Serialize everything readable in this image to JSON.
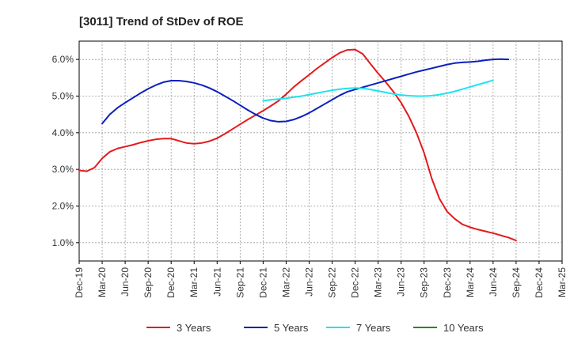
{
  "chart_data": {
    "type": "line",
    "title": "[3011]  Trend of StDev of ROE",
    "xlabel": "",
    "ylabel": "",
    "x_tick_labels": [
      "Dec-19",
      "Mar-20",
      "Jun-20",
      "Sep-20",
      "Dec-20",
      "Mar-21",
      "Jun-21",
      "Sep-21",
      "Dec-21",
      "Mar-22",
      "Jun-22",
      "Sep-22",
      "Dec-22",
      "Mar-23",
      "Jun-23",
      "Sep-23",
      "Dec-23",
      "Mar-24",
      "Jun-24",
      "Sep-24",
      "Dec-24",
      "Mar-25"
    ],
    "y_tick_labels": [
      "1.0%",
      "2.0%",
      "3.0%",
      "4.0%",
      "5.0%",
      "6.0%"
    ],
    "y_ticks": [
      1.0,
      2.0,
      3.0,
      4.0,
      5.0,
      6.0
    ],
    "ylim": [
      0.5,
      6.5
    ],
    "grid": "dashed",
    "legend_position": "bottom",
    "series": [
      {
        "name": "3 Years",
        "color": "#e31a1c",
        "points": [
          [
            "Dec-19",
            2.97
          ],
          [
            "Jan-20",
            2.95
          ],
          [
            "Feb-20",
            3.05
          ],
          [
            "Mar-20",
            3.3
          ],
          [
            "Apr-20",
            3.48
          ],
          [
            "May-20",
            3.57
          ],
          [
            "Jun-20",
            3.62
          ],
          [
            "Jul-20",
            3.67
          ],
          [
            "Aug-20",
            3.73
          ],
          [
            "Sep-20",
            3.78
          ],
          [
            "Oct-20",
            3.82
          ],
          [
            "Nov-20",
            3.84
          ],
          [
            "Dec-20",
            3.84
          ],
          [
            "Jan-21",
            3.78
          ],
          [
            "Feb-21",
            3.72
          ],
          [
            "Mar-21",
            3.7
          ],
          [
            "Apr-21",
            3.72
          ],
          [
            "May-21",
            3.77
          ],
          [
            "Jun-21",
            3.85
          ],
          [
            "Jul-21",
            3.97
          ],
          [
            "Aug-21",
            4.1
          ],
          [
            "Sep-21",
            4.23
          ],
          [
            "Oct-21",
            4.36
          ],
          [
            "Nov-21",
            4.48
          ],
          [
            "Dec-21",
            4.6
          ],
          [
            "Jan-22",
            4.73
          ],
          [
            "Feb-22",
            4.87
          ],
          [
            "Mar-22",
            5.05
          ],
          [
            "Apr-22",
            5.25
          ],
          [
            "May-22",
            5.42
          ],
          [
            "Jun-22",
            5.58
          ],
          [
            "Jul-22",
            5.75
          ],
          [
            "Aug-22",
            5.9
          ],
          [
            "Sep-22",
            6.05
          ],
          [
            "Oct-22",
            6.18
          ],
          [
            "Nov-22",
            6.26
          ],
          [
            "Dec-22",
            6.27
          ],
          [
            "Jan-23",
            6.15
          ],
          [
            "Feb-23",
            5.88
          ],
          [
            "Mar-23",
            5.62
          ],
          [
            "Apr-23",
            5.38
          ],
          [
            "May-23",
            5.12
          ],
          [
            "Jun-23",
            4.82
          ],
          [
            "Jul-23",
            4.45
          ],
          [
            "Aug-23",
            4.0
          ],
          [
            "Sep-23",
            3.45
          ],
          [
            "Oct-23",
            2.75
          ],
          [
            "Nov-23",
            2.2
          ],
          [
            "Dec-23",
            1.85
          ],
          [
            "Jan-24",
            1.65
          ],
          [
            "Feb-24",
            1.5
          ],
          [
            "Mar-24",
            1.42
          ],
          [
            "Apr-24",
            1.36
          ],
          [
            "May-24",
            1.31
          ],
          [
            "Jun-24",
            1.26
          ],
          [
            "Jul-24",
            1.2
          ],
          [
            "Aug-24",
            1.14
          ],
          [
            "Sep-24",
            1.06
          ]
        ]
      },
      {
        "name": "5 Years",
        "color": "#0a1fbf",
        "points": [
          [
            "Mar-20",
            4.25
          ],
          [
            "Apr-20",
            4.5
          ],
          [
            "May-20",
            4.68
          ],
          [
            "Jun-20",
            4.82
          ],
          [
            "Jul-20",
            4.95
          ],
          [
            "Aug-20",
            5.08
          ],
          [
            "Sep-20",
            5.2
          ],
          [
            "Oct-20",
            5.3
          ],
          [
            "Nov-20",
            5.38
          ],
          [
            "Dec-20",
            5.42
          ],
          [
            "Jan-21",
            5.42
          ],
          [
            "Feb-21",
            5.4
          ],
          [
            "Mar-21",
            5.36
          ],
          [
            "Apr-21",
            5.3
          ],
          [
            "May-21",
            5.22
          ],
          [
            "Jun-21",
            5.12
          ],
          [
            "Jul-21",
            5.0
          ],
          [
            "Aug-21",
            4.88
          ],
          [
            "Sep-21",
            4.75
          ],
          [
            "Oct-21",
            4.62
          ],
          [
            "Nov-21",
            4.5
          ],
          [
            "Dec-21",
            4.4
          ],
          [
            "Jan-22",
            4.33
          ],
          [
            "Feb-22",
            4.3
          ],
          [
            "Mar-22",
            4.31
          ],
          [
            "Apr-22",
            4.36
          ],
          [
            "May-22",
            4.44
          ],
          [
            "Jun-22",
            4.54
          ],
          [
            "Jul-22",
            4.66
          ],
          [
            "Aug-22",
            4.78
          ],
          [
            "Sep-22",
            4.9
          ],
          [
            "Oct-22",
            5.02
          ],
          [
            "Nov-22",
            5.12
          ],
          [
            "Dec-22",
            5.18
          ],
          [
            "Jan-23",
            5.24
          ],
          [
            "Feb-23",
            5.3
          ],
          [
            "Mar-23",
            5.36
          ],
          [
            "Apr-23",
            5.42
          ],
          [
            "May-23",
            5.48
          ],
          [
            "Jun-23",
            5.54
          ],
          [
            "Jul-23",
            5.6
          ],
          [
            "Aug-23",
            5.66
          ],
          [
            "Sep-23",
            5.71
          ],
          [
            "Oct-23",
            5.76
          ],
          [
            "Nov-23",
            5.81
          ],
          [
            "Dec-23",
            5.86
          ],
          [
            "Jan-24",
            5.9
          ],
          [
            "Feb-24",
            5.92
          ],
          [
            "Mar-24",
            5.93
          ],
          [
            "Apr-24",
            5.95
          ],
          [
            "May-24",
            5.98
          ],
          [
            "Jun-24",
            6.0
          ],
          [
            "Jul-24",
            6.01
          ],
          [
            "Aug-24",
            6.0
          ]
        ]
      },
      {
        "name": "7 Years",
        "color": "#1ee4ee",
        "points": [
          [
            "Dec-21",
            4.87
          ],
          [
            "Jan-22",
            4.9
          ],
          [
            "Feb-22",
            4.92
          ],
          [
            "Mar-22",
            4.94
          ],
          [
            "Apr-22",
            4.97
          ],
          [
            "May-22",
            5.0
          ],
          [
            "Jun-22",
            5.04
          ],
          [
            "Jul-22",
            5.08
          ],
          [
            "Aug-22",
            5.12
          ],
          [
            "Sep-22",
            5.16
          ],
          [
            "Oct-22",
            5.19
          ],
          [
            "Nov-22",
            5.21
          ],
          [
            "Dec-22",
            5.22
          ],
          [
            "Jan-23",
            5.21
          ],
          [
            "Feb-23",
            5.18
          ],
          [
            "Mar-23",
            5.14
          ],
          [
            "Apr-23",
            5.1
          ],
          [
            "May-23",
            5.06
          ],
          [
            "Jun-23",
            5.03
          ],
          [
            "Jul-23",
            5.01
          ],
          [
            "Aug-23",
            5.0
          ],
          [
            "Sep-23",
            5.0
          ],
          [
            "Oct-23",
            5.01
          ],
          [
            "Nov-23",
            5.04
          ],
          [
            "Dec-23",
            5.08
          ],
          [
            "Jan-24",
            5.13
          ],
          [
            "Feb-24",
            5.19
          ],
          [
            "Mar-24",
            5.25
          ],
          [
            "Apr-24",
            5.31
          ],
          [
            "May-24",
            5.37
          ],
          [
            "Jun-24",
            5.43
          ]
        ]
      },
      {
        "name": "10 Years",
        "color": "#228b22",
        "points": []
      }
    ]
  }
}
